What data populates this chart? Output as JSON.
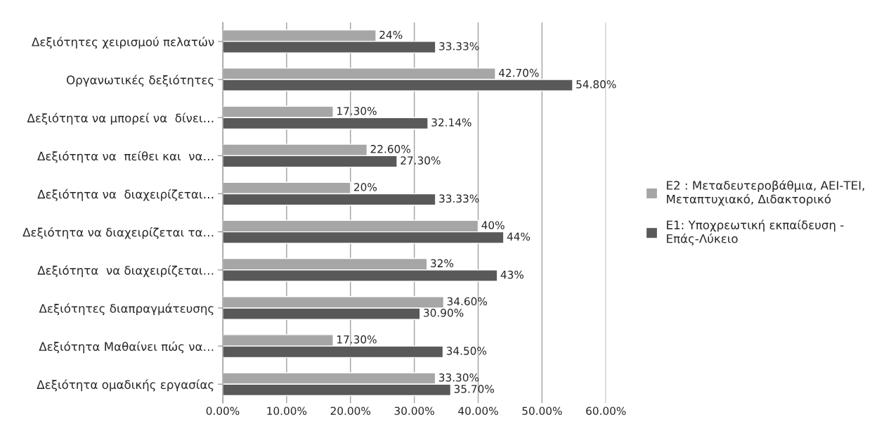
{
  "chart_data": {
    "type": "bar",
    "orientation": "horizontal",
    "categories": [
      "Δεξιότητες χειρισμού πελατών",
      "Οργανωτικές δεξιότητες",
      "Δεξιότητα να μπορεί να  δίνει…",
      "Δεξιότητα να  πείθει και  να…",
      "Δεξιότητα να  διαχειρίζεται…",
      "Δεξιότητα να διαχειρίζεται τα…",
      "Δεξιότητα  να διαχειρίζεται…",
      "Δεξιότητες διαπραγμάτευσης",
      "Δεξιότητα Μαθαίνει πώς να…",
      "Δεξιότητα ομαδικής εργασίας"
    ],
    "series": [
      {
        "name": "E2 : Μεταδευτεροβάθμια, ΑΕΙ-ΤΕΙ,\nΜεταπτυχιακό, Διδακτορικό",
        "color": "#a6a6a6",
        "values": [
          24,
          42.7,
          17.3,
          22.6,
          20,
          40,
          32,
          34.6,
          17.3,
          33.3
        ],
        "value_labels": [
          "24%",
          "42.70%",
          "17.30%",
          "22.60%",
          "20%",
          "40%",
          "32%",
          "34.60%",
          "17.30%",
          "33.30%"
        ]
      },
      {
        "name": "E1: Υποχρεωτική εκπαίδευση -\nΕπάς-Λύκειο",
        "color": "#595959",
        "values": [
          33.33,
          54.8,
          32.14,
          27.3,
          33.33,
          44,
          43,
          30.9,
          34.5,
          35.7
        ],
        "value_labels": [
          "33.33%",
          "54.80%",
          "32.14%",
          "27.30%",
          "33.33%",
          "44%",
          "43%",
          "30.90%",
          "34.50%",
          "35.70%"
        ]
      }
    ],
    "xlim": [
      0,
      60
    ],
    "xticks": [
      {
        "value": 0,
        "label": "0.00%"
      },
      {
        "value": 10,
        "label": "10.00%"
      },
      {
        "value": 20,
        "label": "20.00%"
      },
      {
        "value": 30,
        "label": "30.00%"
      },
      {
        "value": 40,
        "label": "40.00%"
      },
      {
        "value": 50,
        "label": "50.00%"
      },
      {
        "value": 60,
        "label": "60.00%"
      }
    ],
    "grid": "x",
    "legend": "right"
  }
}
